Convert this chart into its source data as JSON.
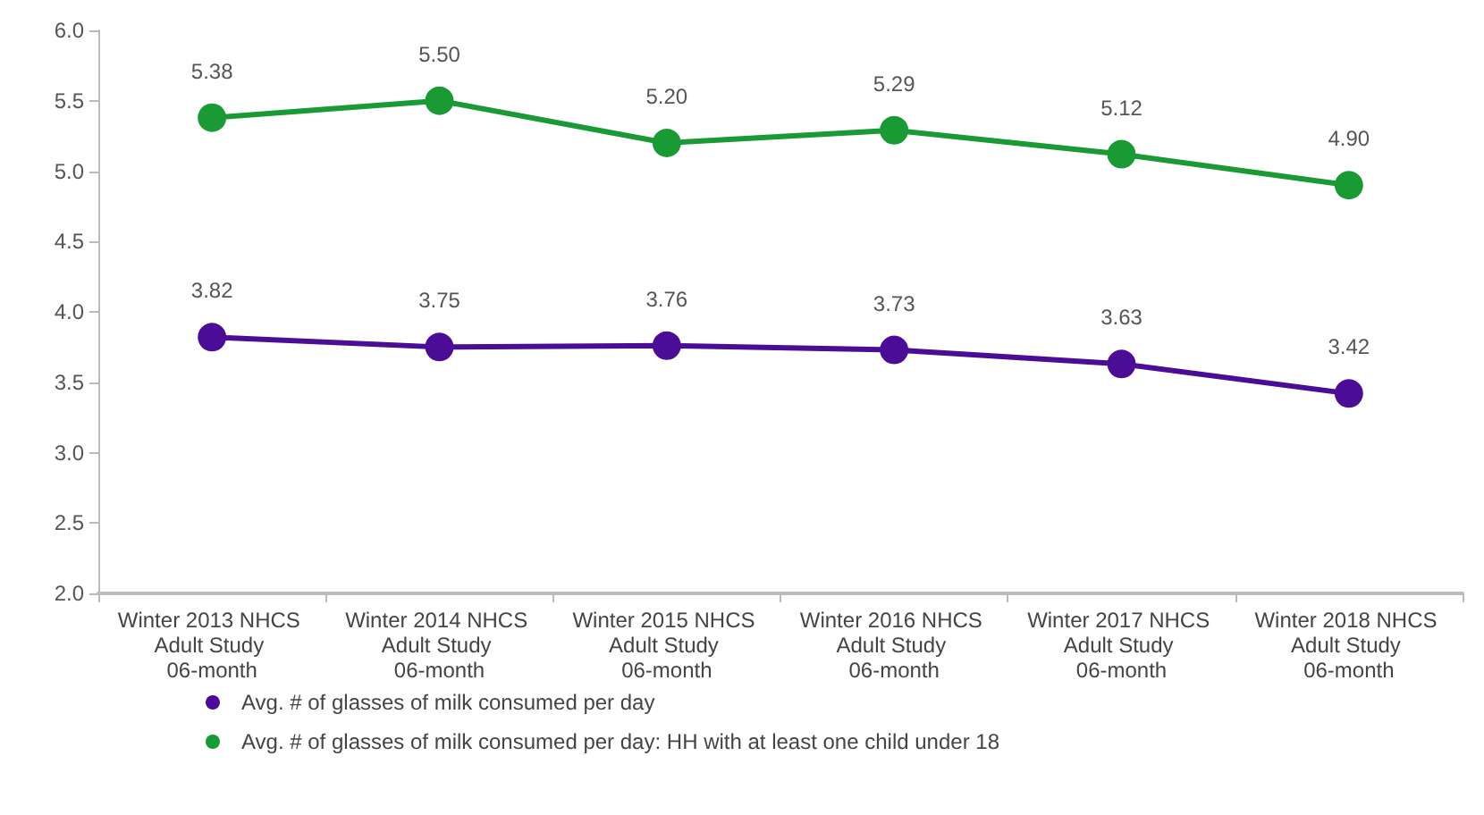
{
  "chart_data": {
    "type": "line",
    "categories": [
      "Winter 2013 NHCS Adult Study 06-month",
      "Winter 2014 NHCS Adult Study 06-month",
      "Winter 2015 NHCS Adult Study 06-month",
      "Winter 2016 NHCS Adult Study 06-month",
      "Winter 2017 NHCS Adult Study 06-month",
      "Winter 2018 NHCS Adult Study 06-month"
    ],
    "series": [
      {
        "name": "Avg. # of glasses of milk consumed per day",
        "color": "#4b0c96",
        "values": [
          3.82,
          3.75,
          3.76,
          3.73,
          3.63,
          3.42
        ],
        "value_labels": [
          "3.82",
          "3.75",
          "3.76",
          "3.73",
          "3.63",
          "3.42"
        ]
      },
      {
        "name": "Avg. # of glasses of milk consumed per day: HH with at least one child under 18",
        "color": "#1a9a35",
        "values": [
          5.38,
          5.5,
          5.2,
          5.29,
          5.12,
          4.9
        ],
        "value_labels": [
          "5.38",
          "5.50",
          "5.20",
          "5.29",
          "5.12",
          "4.90"
        ]
      }
    ],
    "ylim": [
      2,
      6
    ],
    "yticks": [
      {
        "value": 2,
        "label": "2.0"
      },
      {
        "value": 2.5,
        "label": "2.5"
      },
      {
        "value": 3,
        "label": "3.0"
      },
      {
        "value": 3.5,
        "label": "3.5"
      },
      {
        "value": 4,
        "label": "4.0"
      },
      {
        "value": 4.5,
        "label": "4.5"
      },
      {
        "value": 5,
        "label": "5.0"
      },
      {
        "value": 5.5,
        "label": "5.5"
      },
      {
        "value": 6,
        "label": "6.0"
      }
    ],
    "grid": false,
    "legend": "bottom",
    "marker": "circle",
    "line_style": "solid"
  }
}
